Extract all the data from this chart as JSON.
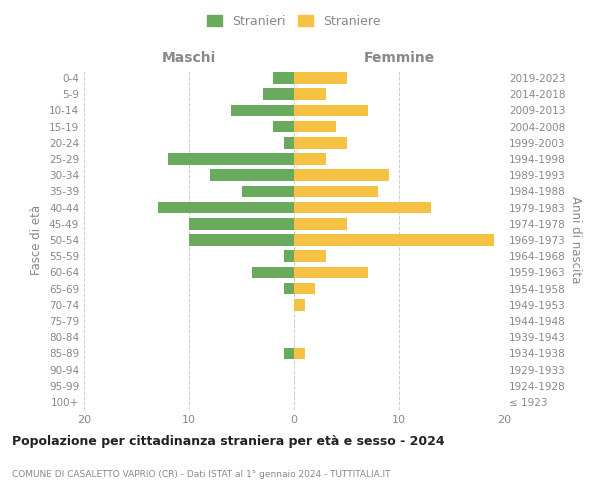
{
  "age_groups": [
    "100+",
    "95-99",
    "90-94",
    "85-89",
    "80-84",
    "75-79",
    "70-74",
    "65-69",
    "60-64",
    "55-59",
    "50-54",
    "45-49",
    "40-44",
    "35-39",
    "30-34",
    "25-29",
    "20-24",
    "15-19",
    "10-14",
    "5-9",
    "0-4"
  ],
  "birth_years": [
    "≤ 1923",
    "1924-1928",
    "1929-1933",
    "1934-1938",
    "1939-1943",
    "1944-1948",
    "1949-1953",
    "1954-1958",
    "1959-1963",
    "1964-1968",
    "1969-1973",
    "1974-1978",
    "1979-1983",
    "1984-1988",
    "1989-1993",
    "1994-1998",
    "1999-2003",
    "2004-2008",
    "2009-2013",
    "2014-2018",
    "2019-2023"
  ],
  "males": [
    0,
    0,
    0,
    1,
    0,
    0,
    0,
    1,
    4,
    1,
    10,
    10,
    13,
    5,
    8,
    12,
    1,
    2,
    6,
    3,
    2
  ],
  "females": [
    0,
    0,
    0,
    1,
    0,
    0,
    1,
    2,
    7,
    3,
    19,
    5,
    13,
    8,
    9,
    3,
    5,
    4,
    7,
    3,
    5
  ],
  "male_color": "#6aaa5e",
  "female_color": "#f5c243",
  "title": "Popolazione per cittadinanza straniera per età e sesso - 2024",
  "subtitle": "COMUNE DI CASALETTO VAPRIO (CR) - Dati ISTAT al 1° gennaio 2024 - TUTTITALIA.IT",
  "label_maschi": "Maschi",
  "label_femmine": "Femmine",
  "ylabel_left": "Fasce di età",
  "ylabel_right": "Anni di nascita",
  "xlim": 20,
  "legend_stranieri": "Stranieri",
  "legend_straniere": "Straniere",
  "bg_color": "#ffffff",
  "grid_color": "#cccccc",
  "text_color": "#888888",
  "title_color": "#222222"
}
